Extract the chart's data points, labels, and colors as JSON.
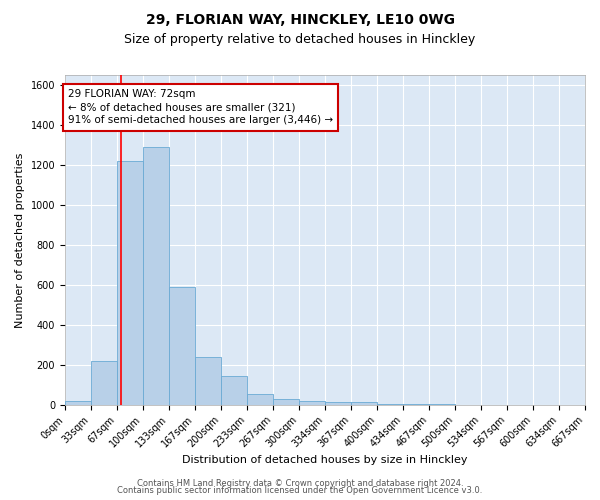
{
  "title1": "29, FLORIAN WAY, HINCKLEY, LE10 0WG",
  "title2": "Size of property relative to detached houses in Hinckley",
  "xlabel": "Distribution of detached houses by size in Hinckley",
  "ylabel": "Number of detached properties",
  "bin_edges": [
    0,
    33,
    67,
    100,
    133,
    167,
    200,
    233,
    267,
    300,
    334,
    367,
    400,
    434,
    467,
    500,
    534,
    567,
    600,
    634,
    667
  ],
  "bar_heights": [
    20,
    220,
    1220,
    1290,
    590,
    240,
    145,
    55,
    30,
    20,
    15,
    15,
    5,
    5,
    2,
    1,
    1,
    1,
    1,
    1
  ],
  "bar_color": "#b8d0e8",
  "bar_edge_color": "#6aaad4",
  "bg_color": "#dce8f5",
  "grid_color": "#ffffff",
  "red_line_x": 72,
  "annotation_line1": "29 FLORIAN WAY: 72sqm",
  "annotation_line2": "← 8% of detached houses are smaller (321)",
  "annotation_line3": "91% of semi-detached houses are larger (3,446) →",
  "annotation_box_color": "#ffffff",
  "annotation_border_color": "#cc0000",
  "ylim": [
    0,
    1650
  ],
  "yticks": [
    0,
    200,
    400,
    600,
    800,
    1000,
    1200,
    1400,
    1600
  ],
  "footer1": "Contains HM Land Registry data © Crown copyright and database right 2024.",
  "footer2": "Contains public sector information licensed under the Open Government Licence v3.0.",
  "title1_fontsize": 10,
  "title2_fontsize": 9,
  "xlabel_fontsize": 8,
  "ylabel_fontsize": 8,
  "tick_fontsize": 7,
  "annotation_fontsize": 7.5,
  "footer_fontsize": 6
}
